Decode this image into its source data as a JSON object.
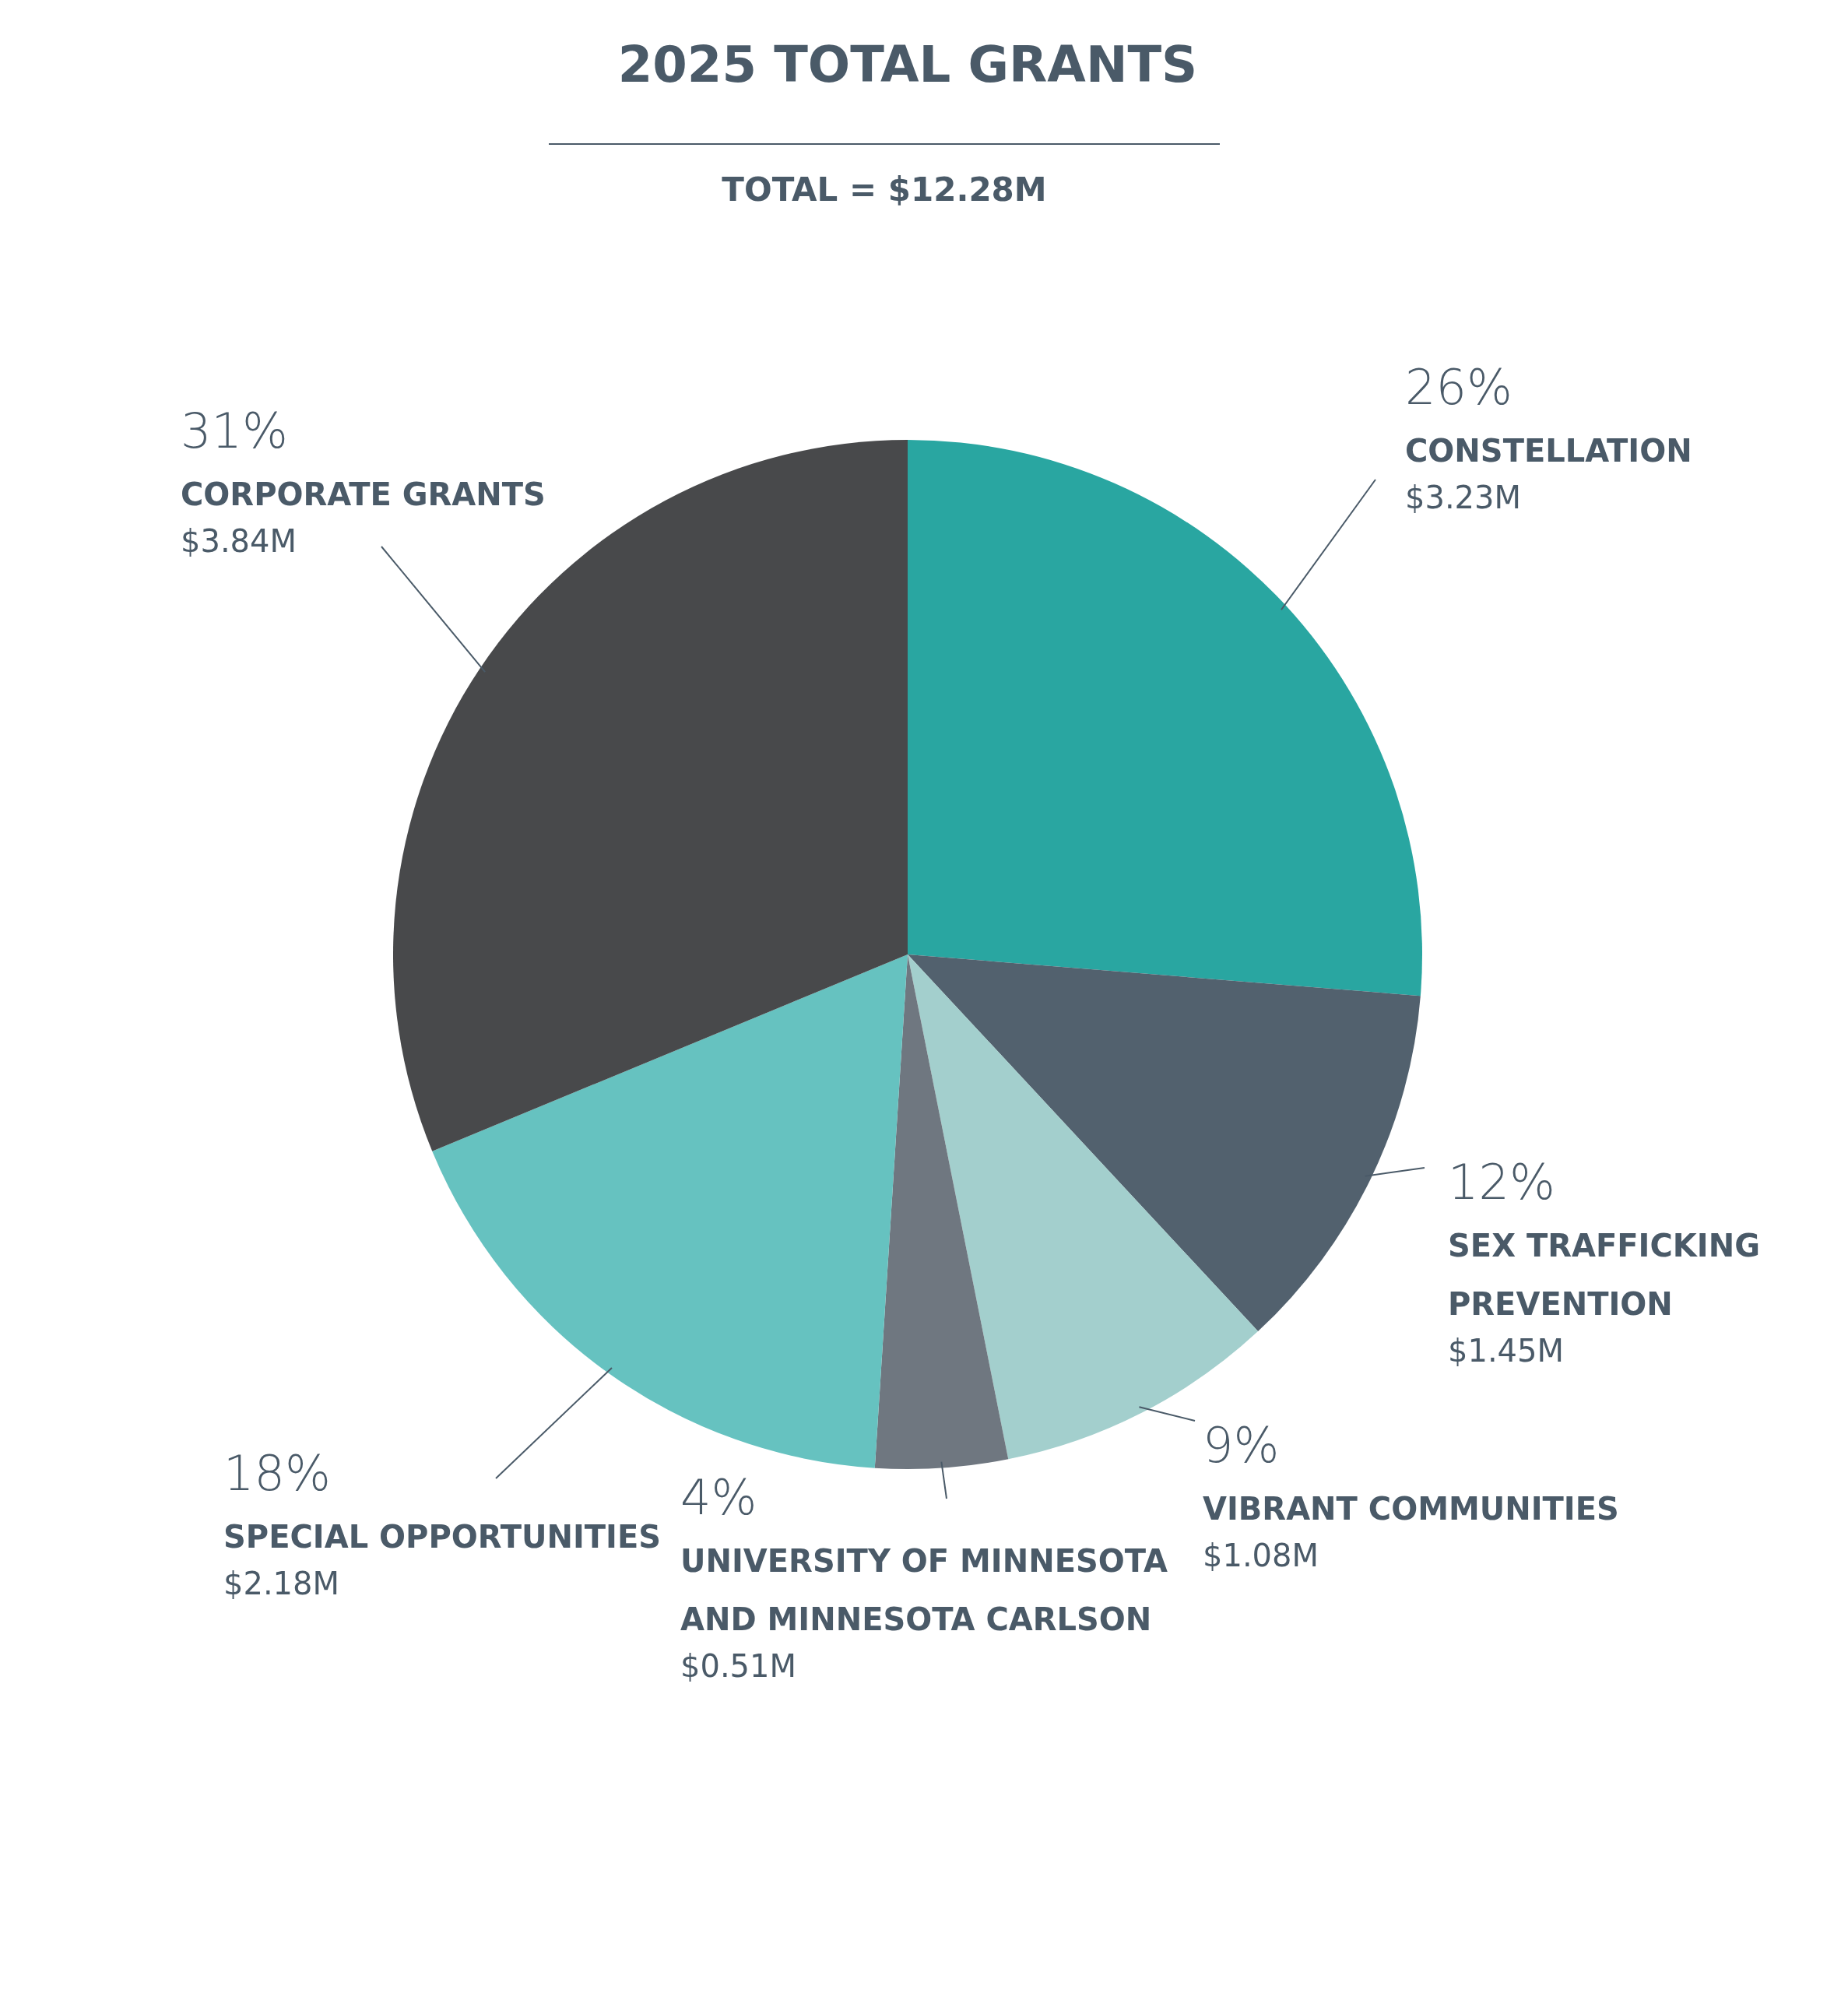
{
  "chart_data": {
    "type": "pie",
    "title": "2025 TOTAL GRANTS",
    "subtitle": "TOTAL = $12.28M",
    "categories": [
      "CONSTELLATION",
      "SEX TRAFFICKING PREVENTION",
      "VIBRANT COMMUNITIES",
      "UNIVERSITY OF MINNESOTA AND MINNESOTA CARLSON",
      "SPECIAL OPPORTUNITIES",
      "CORPORATE GRANTS"
    ],
    "values": [
      3.23,
      1.45,
      1.08,
      0.51,
      2.18,
      3.84
    ],
    "value_labels": [
      "$3.23M",
      "$1.45M",
      "$1.08M",
      "$0.51M",
      "$2.18M",
      "$3.84M"
    ],
    "colors": [
      "#29a6a1",
      "#52616e",
      "#a3cfcd",
      "#6f7780",
      "#66c2c0",
      "#48494b"
    ],
    "annotations": [
      "26%",
      "12%",
      "9%",
      "4%",
      "18%",
      "31%"
    ]
  }
}
